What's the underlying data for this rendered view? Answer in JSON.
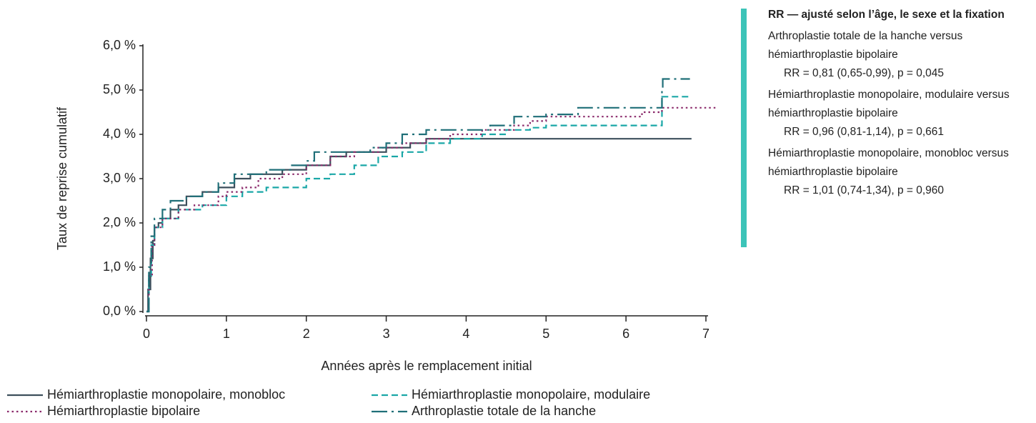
{
  "chart_data": {
    "type": "line",
    "step": true,
    "x_label": "Années après le remplacement initial",
    "y_label": "Taux de reprise cumulatif",
    "xlim": [
      0,
      7
    ],
    "ylim": [
      0,
      6
    ],
    "xticks": [
      0,
      1,
      2,
      3,
      4,
      5,
      6,
      7
    ],
    "yticks": [
      {
        "value": 0,
        "label": "0,0 %"
      },
      {
        "value": 1,
        "label": "1,0 %"
      },
      {
        "value": 2,
        "label": "2,0 %"
      },
      {
        "value": 3,
        "label": "3,0 %"
      },
      {
        "value": 4,
        "label": "4,0 %"
      },
      {
        "value": 5,
        "label": "5,0 %"
      },
      {
        "value": 6,
        "label": "6,0 %"
      }
    ],
    "grid": false,
    "legend": "bottom",
    "series": [
      {
        "name": "Hémiarthroplastie monopolaire, monobloc",
        "color": "#3d4f5c",
        "style": "solid",
        "x": [
          0,
          0.02,
          0.05,
          0.08,
          0.1,
          0.15,
          0.2,
          0.3,
          0.4,
          0.5,
          0.7,
          0.9,
          1.1,
          1.3,
          1.7,
          2.0,
          2.3,
          2.5,
          3.0,
          3.3,
          3.5,
          6.82
        ],
        "values": [
          0,
          0.5,
          1.2,
          1.6,
          1.9,
          2.0,
          2.1,
          2.3,
          2.4,
          2.6,
          2.7,
          2.8,
          3.0,
          3.1,
          3.2,
          3.3,
          3.5,
          3.6,
          3.7,
          3.8,
          3.9,
          3.9
        ]
      },
      {
        "name": "Hémiarthroplastie monopolaire, modulaire",
        "color": "#1aa7a7",
        "style": "dashed",
        "x": [
          0,
          0.03,
          0.06,
          0.1,
          0.2,
          0.4,
          0.7,
          1.0,
          1.2,
          1.5,
          2.0,
          2.3,
          2.6,
          2.9,
          3.2,
          3.5,
          3.8,
          4.2,
          4.5,
          4.8,
          5.0,
          6.45,
          6.8
        ],
        "values": [
          0,
          0.8,
          1.5,
          1.9,
          2.1,
          2.3,
          2.4,
          2.6,
          2.7,
          2.8,
          3.0,
          3.1,
          3.3,
          3.5,
          3.6,
          3.8,
          3.9,
          4.0,
          4.1,
          4.15,
          4.2,
          4.85,
          4.85
        ]
      },
      {
        "name": "Hémiarthroplastie bipolaire",
        "color": "#8b2a6b",
        "style": "dotted",
        "x": [
          0,
          0.03,
          0.07,
          0.1,
          0.2,
          0.4,
          0.6,
          0.9,
          1.0,
          1.2,
          1.4,
          1.7,
          2.0,
          2.3,
          2.6,
          2.9,
          3.2,
          3.5,
          3.8,
          4.2,
          4.6,
          4.8,
          5.0,
          6.2,
          6.45,
          7.15
        ],
        "values": [
          0,
          0.8,
          1.5,
          1.9,
          2.1,
          2.3,
          2.4,
          2.6,
          2.7,
          2.8,
          3.0,
          3.1,
          3.3,
          3.5,
          3.6,
          3.7,
          3.8,
          3.9,
          4.0,
          4.1,
          4.2,
          4.3,
          4.4,
          4.5,
          4.6,
          4.6
        ]
      },
      {
        "name": "Arthroplastie totale de la hanche",
        "color": "#1f6f78",
        "style": "dashdot",
        "x": [
          0,
          0.03,
          0.06,
          0.1,
          0.2,
          0.3,
          0.5,
          0.7,
          0.9,
          1.1,
          1.5,
          1.8,
          2.0,
          2.1,
          2.8,
          3.0,
          3.2,
          3.5,
          4.3,
          4.6,
          5.0,
          5.4,
          6.45,
          6.46,
          6.8
        ],
        "values": [
          0,
          1.0,
          1.7,
          2.1,
          2.3,
          2.5,
          2.6,
          2.7,
          2.9,
          3.1,
          3.2,
          3.3,
          3.4,
          3.6,
          3.7,
          3.8,
          4.0,
          4.1,
          4.2,
          4.4,
          4.45,
          4.6,
          5.0,
          5.25,
          5.25
        ]
      }
    ],
    "note": {
      "title": "RR — ajusté selon l’âge, le sexe et la fixation",
      "items": [
        {
          "comparison": "Arthroplastie totale de la hanche versus hémiarthroplastie bipolaire",
          "stat": "RR = 0,81 (0,65-0,99), p = 0,045"
        },
        {
          "comparison": "Hémiarthroplastie monopolaire, modulaire versus hémiarthroplastie bipolaire",
          "stat": "RR = 0,96 (0,81-1,14), p = 0,661"
        },
        {
          "comparison": "Hémiarthroplastie monopolaire, monobloc versus hémiarthroplastie bipolaire",
          "stat": "RR = 1,01 (0,74-1,34), p = 0,960"
        }
      ]
    }
  }
}
